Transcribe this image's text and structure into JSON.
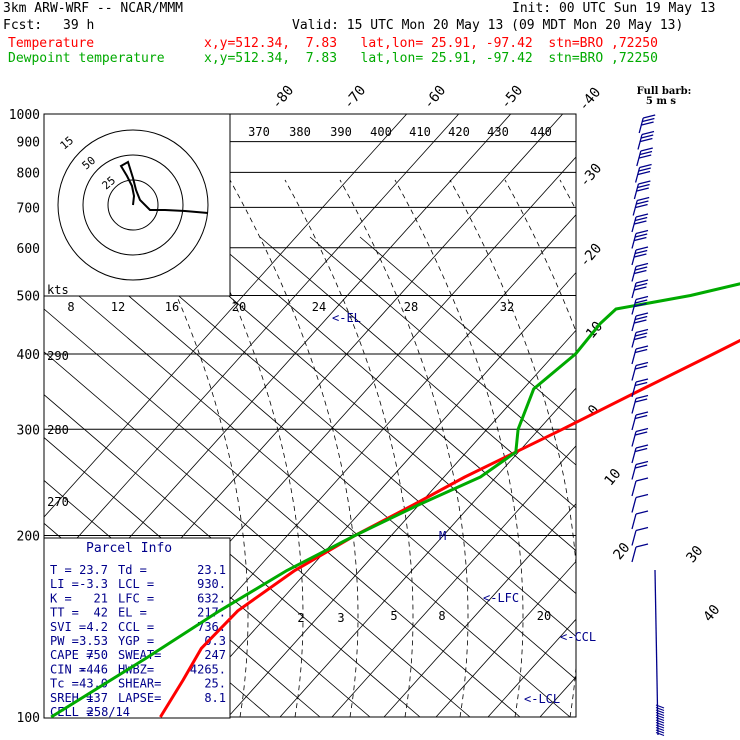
{
  "header": {
    "model": "3km ARW-WRF -- NCAR/MMM",
    "init": "Init: 00 UTC Sun 19 May 13",
    "fcst_label": "Fcst:",
    "fcst_value": "39 h",
    "valid": "Valid: 15 UTC Mon 20 May 13 (09 MDT Mon 20 May 13)"
  },
  "legend": [
    {
      "name": "Temperature",
      "info": "x,y=512.34,  7.83   lat,lon= 25.91, -97.42  stn=BRO ,72250",
      "color": "#ff0000"
    },
    {
      "name": "Dewpoint temperature",
      "info": "x,y=512.34,  7.83   lat,lon= 25.91, -97.42  stn=BRO ,72250",
      "color": "#00aa00"
    }
  ],
  "full_barb_label": [
    "Full barb:",
    "5 m s"
  ],
  "hodograph": {
    "rings": [
      "15",
      "50",
      "25"
    ],
    "kts_label": "kts"
  },
  "parcel_info": {
    "title": "Parcel Info",
    "rows": [
      [
        "T  =",
        "23.7",
        "Td =",
        "23.1"
      ],
      [
        "LI =",
        "-3.3",
        "LCL =",
        "930."
      ],
      [
        "K  =",
        "21",
        "LFC =",
        "632."
      ],
      [
        "TT =",
        "42",
        "EL  =",
        "217."
      ],
      [
        "SVI =",
        "4.2",
        "CCL =",
        "736."
      ],
      [
        "PW =",
        "3.53",
        "YGP =",
        "0.3"
      ],
      [
        "CAPE =",
        "750",
        "SWEAT=",
        "247"
      ],
      [
        "CIN =",
        "-446",
        "HWBZ=",
        "4265."
      ],
      [
        "Tc =",
        "43.0",
        "SHEAR=",
        "25."
      ],
      [
        "SREH =",
        "137",
        "LAPSE=",
        "8.1"
      ],
      [
        "CELL =",
        "258/14",
        "",
        ""
      ]
    ]
  },
  "annotations": [
    "<-EL",
    "<-LFC",
    "<-CCL",
    "<-LCL",
    "M"
  ],
  "colors": {
    "temperature": "#ff0000",
    "dewpoint": "#00aa00",
    "text_blue": "#00008b",
    "barbs": "#00008b"
  },
  "chart_data": {
    "type": "line",
    "pressure_levels": [
      1000,
      900,
      800,
      700,
      600,
      500,
      400,
      300,
      200,
      100
    ],
    "isotherm_labels": [
      "-80",
      "-70",
      "-60",
      "-50",
      "-40",
      "-30",
      "-20",
      "-10",
      "0",
      "10",
      "20",
      "30",
      "40"
    ],
    "theta_labels": [
      "370",
      "380",
      "390",
      "400",
      "410",
      "420",
      "430",
      "440"
    ],
    "mixing_ratio_labels": [
      "8",
      "12",
      "16",
      "20",
      "24",
      "28",
      "32"
    ],
    "lower_mixing_labels": [
      "2",
      "3",
      "5",
      "8",
      "20"
    ],
    "theta_side_labels": [
      "290",
      "280",
      "270"
    ],
    "series": [
      {
        "name": "Temperature",
        "color": "#ff0000",
        "points": [
          [
            1000,
            22.0
          ],
          [
            975,
            21.5
          ],
          [
            950,
            23.0
          ],
          [
            925,
            24.5
          ],
          [
            900,
            23.5
          ],
          [
            850,
            21.0
          ],
          [
            800,
            18.5
          ],
          [
            750,
            14.5
          ],
          [
            700,
            10.5
          ],
          [
            650,
            6.0
          ],
          [
            600,
            1.5
          ],
          [
            550,
            -3.5
          ],
          [
            500,
            -8.0
          ],
          [
            450,
            -13.0
          ],
          [
            400,
            -19.5
          ],
          [
            350,
            -27.0
          ],
          [
            300,
            -35.5
          ],
          [
            250,
            -46.0
          ],
          [
            225,
            -51.0
          ],
          [
            200,
            -57.0
          ],
          [
            175,
            -62.5
          ],
          [
            150,
            -66.5
          ],
          [
            130,
            -67.0
          ],
          [
            115,
            -65.0
          ],
          [
            100,
            -63.0
          ]
        ]
      },
      {
        "name": "Dewpoint temperature",
        "color": "#00aa00",
        "points": [
          [
            1000,
            21.0
          ],
          [
            975,
            20.0
          ],
          [
            950,
            19.0
          ],
          [
            925,
            18.5
          ],
          [
            900,
            16.5
          ],
          [
            850,
            5.0
          ],
          [
            800,
            4.0
          ],
          [
            750,
            4.0
          ],
          [
            700,
            2.0
          ],
          [
            650,
            -4.0
          ],
          [
            600,
            -9.0
          ],
          [
            550,
            -18.0
          ],
          [
            500,
            -34.0
          ],
          [
            475,
            -46.0
          ],
          [
            450,
            -46.5
          ],
          [
            400,
            -46.0
          ],
          [
            350,
            -48.0
          ],
          [
            300,
            -44.0
          ],
          [
            275,
            -40.5
          ],
          [
            250,
            -43.0
          ],
          [
            225,
            -50.0
          ],
          [
            200,
            -57.0
          ],
          [
            175,
            -64.0
          ],
          [
            150,
            -70.0
          ],
          [
            125,
            -76.0
          ],
          [
            100,
            -84.0
          ]
        ]
      }
    ]
  }
}
